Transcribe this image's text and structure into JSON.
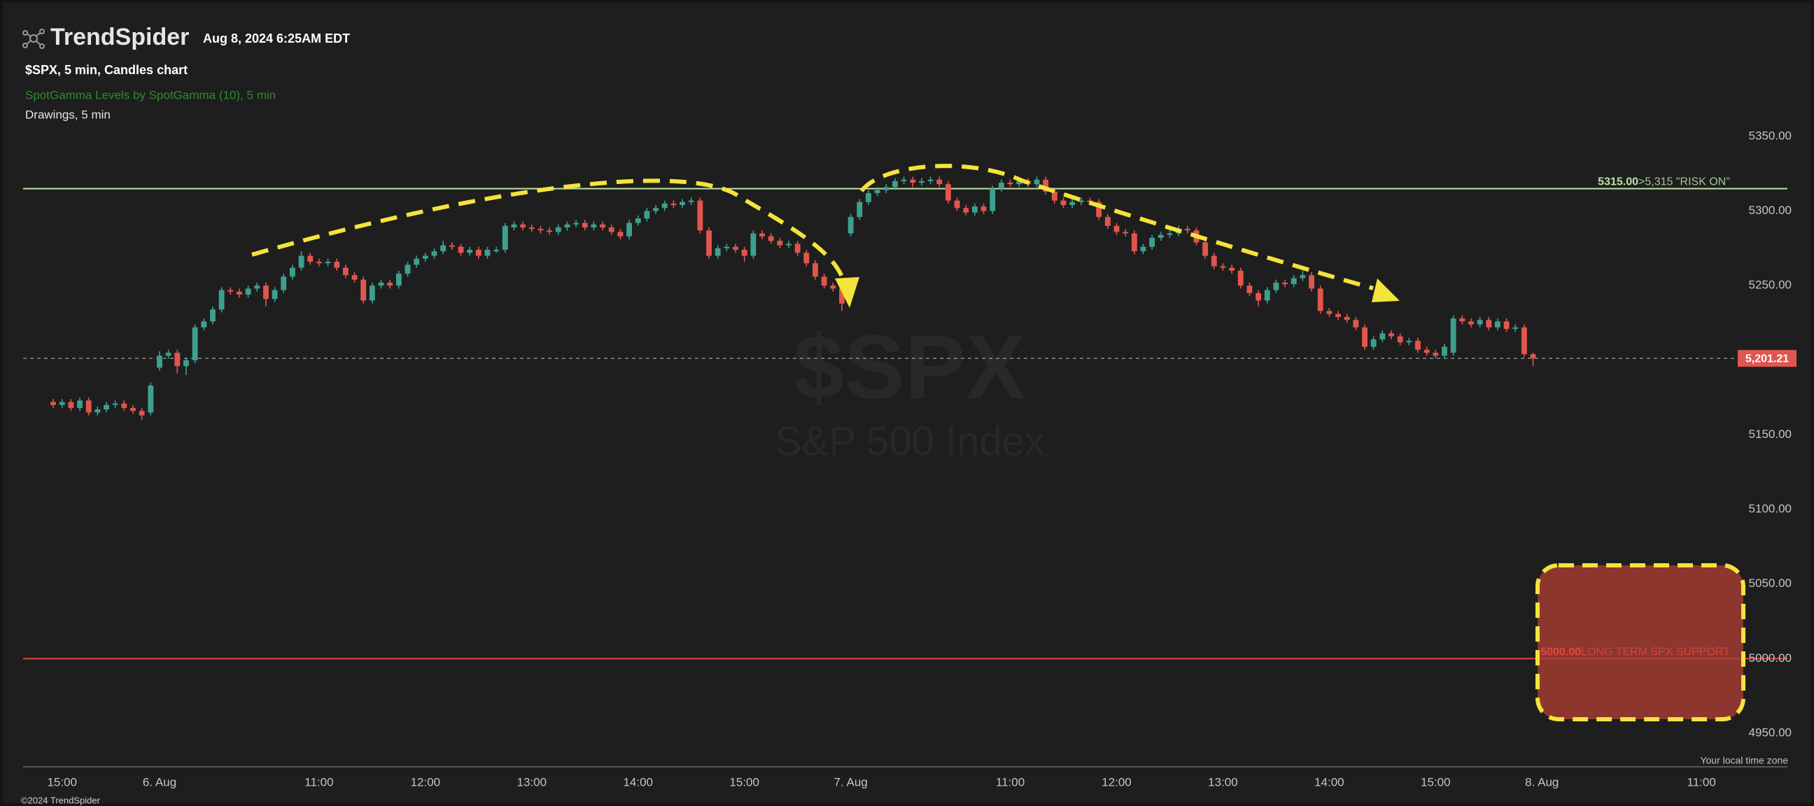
{
  "header": {
    "logo": "TrendSpider",
    "datetime": "Aug 8, 2024 6:25AM EDT"
  },
  "chart_data": {
    "type": "candlestick",
    "title": "$SPX, 5 min, Candles chart",
    "indicators": [
      "SpotGamma Levels by SpotGamma (10), 5 min",
      "Drawings, 5 min"
    ],
    "watermark": {
      "symbol": "$SPX",
      "name": "S&P 500 Index"
    },
    "up_color": "#3f9f8f",
    "down_color": "#e0564f",
    "open": [
      5172,
      5170,
      5172,
      5168,
      5173,
      5165,
      5167,
      5170,
      5171,
      5168,
      5166,
      5165,
      5195,
      5203,
      5205,
      5196,
      5200,
      5222,
      5226,
      5234,
      5247,
      5246,
      5244,
      5248,
      5250,
      5241,
      5247,
      5256,
      5262,
      5270,
      5266,
      5265,
      5266,
      5262,
      5257,
      5254,
      5240,
      5250,
      5252,
      5250,
      5258,
      5264,
      5268,
      5270,
      5273,
      5277,
      5276,
      5272,
      5274,
      5270,
      5273,
      5274,
      5289,
      5291,
      5289,
      5288,
      5287,
      5286,
      5289,
      5291,
      5292,
      5289,
      5291,
      5289,
      5286,
      5283,
      5292,
      5295,
      5300,
      5302,
      5305,
      5304,
      5306,
      5307,
      5287,
      5270,
      5275,
      5276,
      5274,
      5270,
      5285,
      5283,
      5280,
      5277,
      5278,
      5272,
      5265,
      5256,
      5250,
      5248,
      5285,
      5296,
      5306,
      5312,
      5314,
      5316,
      5320,
      5321,
      5319,
      5320,
      5321,
      5318,
      5307,
      5302,
      5299,
      5303,
      5300,
      5315,
      5319,
      5318,
      5320,
      5318,
      5321,
      5313,
      5307,
      5304,
      5306,
      5307,
      5306,
      5296,
      5290,
      5286,
      5285,
      5273,
      5276,
      5282,
      5284,
      5285,
      5288,
      5287,
      5279,
      5270,
      5263,
      5262,
      5260,
      5250,
      5245,
      5240,
      5247,
      5252,
      5251,
      5255,
      5257,
      5248,
      5233,
      5231,
      5229,
      5227,
      5222,
      5209,
      5214,
      5218,
      5216,
      5212,
      5213,
      5207,
      5205,
      5203,
      5205,
      5228,
      5226,
      5224,
      5227,
      5222,
      5226,
      5221,
      5222,
      5204
    ],
    "high": [
      5174,
      5174,
      5174,
      5175,
      5175,
      5169,
      5172,
      5173,
      5173,
      5170,
      5168,
      5185,
      5206,
      5207,
      5207,
      5202,
      5224,
      5228,
      5236,
      5249,
      5249,
      5248,
      5250,
      5252,
      5252,
      5249,
      5258,
      5264,
      5273,
      5272,
      5268,
      5268,
      5268,
      5264,
      5259,
      5256,
      5252,
      5254,
      5254,
      5260,
      5266,
      5270,
      5272,
      5275,
      5280,
      5279,
      5278,
      5276,
      5276,
      5276,
      5276,
      5292,
      5293,
      5293,
      5291,
      5290,
      5289,
      5291,
      5293,
      5294,
      5294,
      5293,
      5293,
      5291,
      5288,
      5294,
      5297,
      5302,
      5304,
      5307,
      5307,
      5308,
      5309,
      5309,
      5289,
      5277,
      5278,
      5278,
      5276,
      5287,
      5287,
      5285,
      5282,
      5280,
      5280,
      5274,
      5267,
      5258,
      5252,
      5250,
      5298,
      5308,
      5314,
      5316,
      5318,
      5322,
      5323,
      5323,
      5322,
      5323,
      5323,
      5320,
      5309,
      5304,
      5305,
      5305,
      5317,
      5321,
      5321,
      5322,
      5322,
      5323,
      5323,
      5315,
      5309,
      5308,
      5309,
      5309,
      5308,
      5298,
      5292,
      5288,
      5287,
      5278,
      5284,
      5286,
      5288,
      5290,
      5290,
      5289,
      5281,
      5272,
      5265,
      5264,
      5262,
      5252,
      5247,
      5249,
      5254,
      5254,
      5257,
      5260,
      5259,
      5250,
      5235,
      5233,
      5231,
      5229,
      5224,
      5216,
      5220,
      5220,
      5218,
      5215,
      5215,
      5209,
      5207,
      5211,
      5230,
      5230,
      5228,
      5229,
      5229,
      5228,
      5228,
      5224,
      5224,
      5205
    ],
    "low": [
      5168,
      5168,
      5166,
      5166,
      5163,
      5163,
      5165,
      5168,
      5166,
      5164,
      5160,
      5163,
      5193,
      5201,
      5191,
      5190,
      5198,
      5220,
      5224,
      5232,
      5244,
      5242,
      5242,
      5246,
      5236,
      5239,
      5245,
      5254,
      5260,
      5264,
      5263,
      5263,
      5260,
      5255,
      5252,
      5238,
      5238,
      5248,
      5248,
      5248,
      5256,
      5262,
      5266,
      5268,
      5271,
      5274,
      5270,
      5270,
      5268,
      5268,
      5272,
      5272,
      5287,
      5287,
      5286,
      5285,
      5284,
      5284,
      5287,
      5289,
      5287,
      5287,
      5287,
      5284,
      5281,
      5281,
      5290,
      5293,
      5298,
      5300,
      5302,
      5302,
      5304,
      5285,
      5268,
      5268,
      5273,
      5272,
      5266,
      5268,
      5281,
      5278,
      5275,
      5275,
      5270,
      5263,
      5254,
      5248,
      5246,
      5233,
      5283,
      5294,
      5304,
      5310,
      5312,
      5314,
      5318,
      5316,
      5317,
      5318,
      5316,
      5305,
      5300,
      5297,
      5297,
      5298,
      5298,
      5313,
      5316,
      5316,
      5316,
      5316,
      5311,
      5305,
      5302,
      5302,
      5304,
      5304,
      5294,
      5288,
      5284,
      5283,
      5271,
      5271,
      5274,
      5280,
      5282,
      5283,
      5285,
      5277,
      5268,
      5261,
      5260,
      5258,
      5248,
      5243,
      5236,
      5238,
      5245,
      5249,
      5249,
      5253,
      5246,
      5231,
      5229,
      5227,
      5225,
      5220,
      5207,
      5207,
      5212,
      5214,
      5210,
      5210,
      5205,
      5203,
      5201,
      5201,
      5203,
      5224,
      5222,
      5222,
      5220,
      5220,
      5219,
      5219,
      5202,
      5196
    ],
    "close": [
      5170,
      5172,
      5168,
      5173,
      5165,
      5167,
      5170,
      5171,
      5168,
      5166,
      5163,
      5183,
      5203,
      5205,
      5196,
      5200,
      5222,
      5226,
      5234,
      5247,
      5246,
      5244,
      5248,
      5250,
      5241,
      5247,
      5256,
      5262,
      5270,
      5266,
      5265,
      5266,
      5262,
      5257,
      5254,
      5240,
      5250,
      5252,
      5250,
      5258,
      5264,
      5268,
      5270,
      5273,
      5277,
      5276,
      5272,
      5274,
      5270,
      5274,
      5274,
      5290,
      5291,
      5289,
      5288,
      5287,
      5286,
      5289,
      5291,
      5292,
      5289,
      5291,
      5289,
      5286,
      5283,
      5292,
      5295,
      5300,
      5302,
      5305,
      5304,
      5306,
      5307,
      5287,
      5270,
      5275,
      5276,
      5274,
      5270,
      5285,
      5283,
      5280,
      5277,
      5278,
      5272,
      5265,
      5256,
      5250,
      5248,
      5238,
      5296,
      5306,
      5312,
      5314,
      5316,
      5320,
      5321,
      5319,
      5320,
      5321,
      5318,
      5307,
      5302,
      5299,
      5303,
      5300,
      5315,
      5319,
      5318,
      5320,
      5318,
      5321,
      5313,
      5307,
      5304,
      5306,
      5307,
      5306,
      5296,
      5290,
      5286,
      5285,
      5273,
      5276,
      5282,
      5284,
      5285,
      5288,
      5287,
      5279,
      5270,
      5263,
      5262,
      5260,
      5250,
      5245,
      5240,
      5247,
      5252,
      5251,
      5255,
      5257,
      5248,
      5233,
      5231,
      5229,
      5227,
      5222,
      5209,
      5214,
      5218,
      5216,
      5212,
      5213,
      5207,
      5205,
      5203,
      5209,
      5228,
      5226,
      5224,
      5227,
      5222,
      5226,
      5221,
      5222,
      5204,
      5201.21
    ],
    "xlim": [
      -3.4,
      195.7
    ],
    "xticks": [
      {
        "value": 1,
        "label": "15:00"
      },
      {
        "value": 12,
        "label": "6. Aug"
      },
      {
        "value": 30,
        "label": "11:00"
      },
      {
        "value": 42,
        "label": "12:00"
      },
      {
        "value": 54,
        "label": "13:00"
      },
      {
        "value": 66,
        "label": "14:00"
      },
      {
        "value": 78,
        "label": "15:00"
      },
      {
        "value": 90,
        "label": "7. Aug"
      },
      {
        "value": 108,
        "label": "11:00"
      },
      {
        "value": 120,
        "label": "12:00"
      },
      {
        "value": 132,
        "label": "13:00"
      },
      {
        "value": 144,
        "label": "14:00"
      },
      {
        "value": 156,
        "label": "15:00"
      },
      {
        "value": 168,
        "label": "8. Aug"
      },
      {
        "value": 186,
        "label": "11:00"
      }
    ],
    "ylim": [
      4927.5,
      5441.4
    ],
    "yticks": [
      {
        "value": 4950,
        "label": "4950.00"
      },
      {
        "value": 5000,
        "label": "5000.00"
      },
      {
        "value": 5050,
        "label": "5050.00"
      },
      {
        "value": 5100,
        "label": "5100.00"
      },
      {
        "value": 5150,
        "label": "5150.00"
      },
      {
        "value": 5200,
        "label": "5200.00"
      },
      {
        "value": 5250,
        "label": "5250.00"
      },
      {
        "value": 5300,
        "label": "5300.00"
      },
      {
        "value": 5350,
        "label": "5350.00"
      }
    ],
    "levels": [
      {
        "value": 5315,
        "label": "5315.00",
        "text": ">5,315 \"RISK ON\"",
        "color": "#b9e3a6"
      },
      {
        "value": 5000,
        "label": "5000.00",
        "text": "LONG TERM SPX SUPPORT",
        "color": "#e2473d"
      }
    ],
    "last_price": {
      "value": 5201.21,
      "label": "5,201.21",
      "color": "#e0564f"
    },
    "x_axis_note": "Your local time zone"
  },
  "footer": "©2024 TrendSpider"
}
